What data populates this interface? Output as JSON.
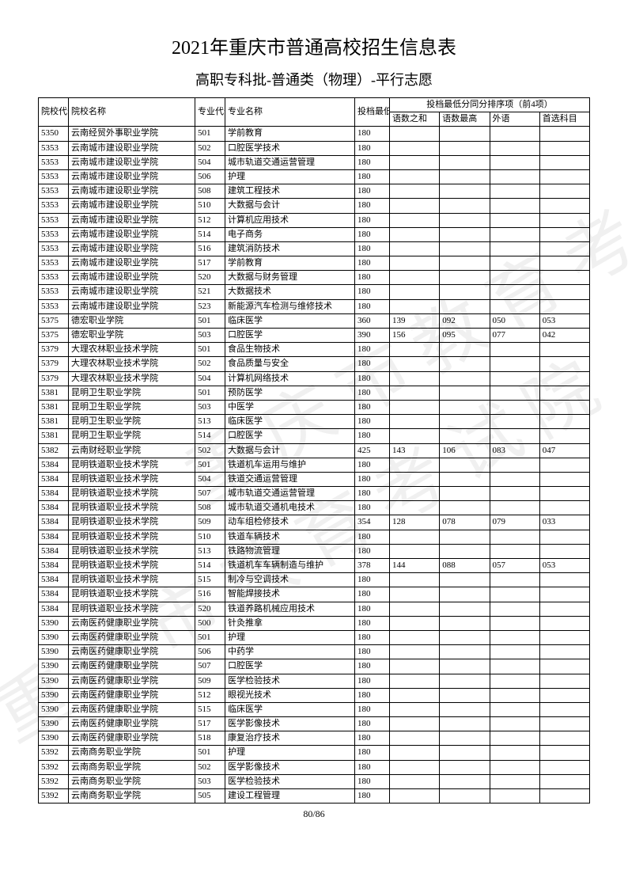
{
  "title": "2021年重庆市普通高校招生信息表",
  "subtitle": "高职专科批-普通类（物理）-平行志愿",
  "page_number": "80/86",
  "watermark": "重庆市教育考试院",
  "header": {
    "col_school_code": "院校代号",
    "col_school_name": "院校名称",
    "col_major_code": "专业代号",
    "col_major_name": "专业名称",
    "col_min_score": "投档最低分",
    "col_tiebreak": "投档最低分同分排序项（前4项）",
    "sub_yushu": "语数之和",
    "sub_yumax": "语数最高",
    "sub_foreign": "外语",
    "sub_pref": "首选科目"
  },
  "rows": [
    {
      "c": "5350",
      "s": "云南经贸外事职业学院",
      "mc": "501",
      "mn": "学前教育",
      "sc": "180",
      "a": "",
      "b": "",
      "d": "",
      "e": ""
    },
    {
      "c": "5353",
      "s": "云南城市建设职业学院",
      "mc": "502",
      "mn": "口腔医学技术",
      "sc": "180",
      "a": "",
      "b": "",
      "d": "",
      "e": ""
    },
    {
      "c": "5353",
      "s": "云南城市建设职业学院",
      "mc": "504",
      "mn": "城市轨道交通运营管理",
      "sc": "180",
      "a": "",
      "b": "",
      "d": "",
      "e": ""
    },
    {
      "c": "5353",
      "s": "云南城市建设职业学院",
      "mc": "506",
      "mn": "护理",
      "sc": "180",
      "a": "",
      "b": "",
      "d": "",
      "e": ""
    },
    {
      "c": "5353",
      "s": "云南城市建设职业学院",
      "mc": "508",
      "mn": "建筑工程技术",
      "sc": "180",
      "a": "",
      "b": "",
      "d": "",
      "e": ""
    },
    {
      "c": "5353",
      "s": "云南城市建设职业学院",
      "mc": "510",
      "mn": "大数据与会计",
      "sc": "180",
      "a": "",
      "b": "",
      "d": "",
      "e": ""
    },
    {
      "c": "5353",
      "s": "云南城市建设职业学院",
      "mc": "512",
      "mn": "计算机应用技术",
      "sc": "180",
      "a": "",
      "b": "",
      "d": "",
      "e": ""
    },
    {
      "c": "5353",
      "s": "云南城市建设职业学院",
      "mc": "514",
      "mn": "电子商务",
      "sc": "180",
      "a": "",
      "b": "",
      "d": "",
      "e": ""
    },
    {
      "c": "5353",
      "s": "云南城市建设职业学院",
      "mc": "516",
      "mn": "建筑消防技术",
      "sc": "180",
      "a": "",
      "b": "",
      "d": "",
      "e": ""
    },
    {
      "c": "5353",
      "s": "云南城市建设职业学院",
      "mc": "517",
      "mn": "学前教育",
      "sc": "180",
      "a": "",
      "b": "",
      "d": "",
      "e": ""
    },
    {
      "c": "5353",
      "s": "云南城市建设职业学院",
      "mc": "520",
      "mn": "大数据与财务管理",
      "sc": "180",
      "a": "",
      "b": "",
      "d": "",
      "e": ""
    },
    {
      "c": "5353",
      "s": "云南城市建设职业学院",
      "mc": "521",
      "mn": "大数据技术",
      "sc": "180",
      "a": "",
      "b": "",
      "d": "",
      "e": ""
    },
    {
      "c": "5353",
      "s": "云南城市建设职业学院",
      "mc": "523",
      "mn": "新能源汽车检测与维修技术",
      "sc": "180",
      "a": "",
      "b": "",
      "d": "",
      "e": ""
    },
    {
      "c": "5375",
      "s": "德宏职业学院",
      "mc": "501",
      "mn": "临床医学",
      "sc": "360",
      "a": "139",
      "b": "092",
      "d": "050",
      "e": "053"
    },
    {
      "c": "5375",
      "s": "德宏职业学院",
      "mc": "503",
      "mn": "口腔医学",
      "sc": "390",
      "a": "156",
      "b": "095",
      "d": "077",
      "e": "042"
    },
    {
      "c": "5379",
      "s": "大理农林职业技术学院",
      "mc": "501",
      "mn": "食品生物技术",
      "sc": "180",
      "a": "",
      "b": "",
      "d": "",
      "e": ""
    },
    {
      "c": "5379",
      "s": "大理农林职业技术学院",
      "mc": "502",
      "mn": "食品质量与安全",
      "sc": "180",
      "a": "",
      "b": "",
      "d": "",
      "e": ""
    },
    {
      "c": "5379",
      "s": "大理农林职业技术学院",
      "mc": "504",
      "mn": "计算机网络技术",
      "sc": "180",
      "a": "",
      "b": "",
      "d": "",
      "e": ""
    },
    {
      "c": "5381",
      "s": "昆明卫生职业学院",
      "mc": "501",
      "mn": "预防医学",
      "sc": "180",
      "a": "",
      "b": "",
      "d": "",
      "e": ""
    },
    {
      "c": "5381",
      "s": "昆明卫生职业学院",
      "mc": "503",
      "mn": "中医学",
      "sc": "180",
      "a": "",
      "b": "",
      "d": "",
      "e": ""
    },
    {
      "c": "5381",
      "s": "昆明卫生职业学院",
      "mc": "513",
      "mn": "临床医学",
      "sc": "180",
      "a": "",
      "b": "",
      "d": "",
      "e": ""
    },
    {
      "c": "5381",
      "s": "昆明卫生职业学院",
      "mc": "514",
      "mn": "口腔医学",
      "sc": "180",
      "a": "",
      "b": "",
      "d": "",
      "e": ""
    },
    {
      "c": "5382",
      "s": "云南财经职业学院",
      "mc": "502",
      "mn": "大数据与会计",
      "sc": "425",
      "a": "143",
      "b": "106",
      "d": "083",
      "e": "047"
    },
    {
      "c": "5384",
      "s": "昆明铁道职业技术学院",
      "mc": "501",
      "mn": "铁道机车运用与维护",
      "sc": "180",
      "a": "",
      "b": "",
      "d": "",
      "e": ""
    },
    {
      "c": "5384",
      "s": "昆明铁道职业技术学院",
      "mc": "504",
      "mn": "铁道交通运营管理",
      "sc": "180",
      "a": "",
      "b": "",
      "d": "",
      "e": ""
    },
    {
      "c": "5384",
      "s": "昆明铁道职业技术学院",
      "mc": "507",
      "mn": "城市轨道交通运营管理",
      "sc": "180",
      "a": "",
      "b": "",
      "d": "",
      "e": ""
    },
    {
      "c": "5384",
      "s": "昆明铁道职业技术学院",
      "mc": "508",
      "mn": "城市轨道交通机电技术",
      "sc": "180",
      "a": "",
      "b": "",
      "d": "",
      "e": ""
    },
    {
      "c": "5384",
      "s": "昆明铁道职业技术学院",
      "mc": "509",
      "mn": "动车组检修技术",
      "sc": "354",
      "a": "128",
      "b": "078",
      "d": "079",
      "e": "033"
    },
    {
      "c": "5384",
      "s": "昆明铁道职业技术学院",
      "mc": "510",
      "mn": "铁道车辆技术",
      "sc": "180",
      "a": "",
      "b": "",
      "d": "",
      "e": ""
    },
    {
      "c": "5384",
      "s": "昆明铁道职业技术学院",
      "mc": "513",
      "mn": "铁路物流管理",
      "sc": "180",
      "a": "",
      "b": "",
      "d": "",
      "e": ""
    },
    {
      "c": "5384",
      "s": "昆明铁道职业技术学院",
      "mc": "514",
      "mn": "铁道机车车辆制造与维护",
      "sc": "378",
      "a": "144",
      "b": "088",
      "d": "057",
      "e": "053"
    },
    {
      "c": "5384",
      "s": "昆明铁道职业技术学院",
      "mc": "515",
      "mn": "制冷与空调技术",
      "sc": "180",
      "a": "",
      "b": "",
      "d": "",
      "e": ""
    },
    {
      "c": "5384",
      "s": "昆明铁道职业技术学院",
      "mc": "516",
      "mn": "智能焊接技术",
      "sc": "180",
      "a": "",
      "b": "",
      "d": "",
      "e": ""
    },
    {
      "c": "5384",
      "s": "昆明铁道职业技术学院",
      "mc": "520",
      "mn": "铁道养路机械应用技术",
      "sc": "180",
      "a": "",
      "b": "",
      "d": "",
      "e": ""
    },
    {
      "c": "5390",
      "s": "云南医药健康职业学院",
      "mc": "500",
      "mn": "针灸推拿",
      "sc": "180",
      "a": "",
      "b": "",
      "d": "",
      "e": ""
    },
    {
      "c": "5390",
      "s": "云南医药健康职业学院",
      "mc": "501",
      "mn": "护理",
      "sc": "180",
      "a": "",
      "b": "",
      "d": "",
      "e": ""
    },
    {
      "c": "5390",
      "s": "云南医药健康职业学院",
      "mc": "506",
      "mn": "中药学",
      "sc": "180",
      "a": "",
      "b": "",
      "d": "",
      "e": ""
    },
    {
      "c": "5390",
      "s": "云南医药健康职业学院",
      "mc": "507",
      "mn": "口腔医学",
      "sc": "180",
      "a": "",
      "b": "",
      "d": "",
      "e": ""
    },
    {
      "c": "5390",
      "s": "云南医药健康职业学院",
      "mc": "509",
      "mn": "医学检验技术",
      "sc": "180",
      "a": "",
      "b": "",
      "d": "",
      "e": ""
    },
    {
      "c": "5390",
      "s": "云南医药健康职业学院",
      "mc": "512",
      "mn": "眼视光技术",
      "sc": "180",
      "a": "",
      "b": "",
      "d": "",
      "e": ""
    },
    {
      "c": "5390",
      "s": "云南医药健康职业学院",
      "mc": "515",
      "mn": "临床医学",
      "sc": "180",
      "a": "",
      "b": "",
      "d": "",
      "e": ""
    },
    {
      "c": "5390",
      "s": "云南医药健康职业学院",
      "mc": "517",
      "mn": "医学影像技术",
      "sc": "180",
      "a": "",
      "b": "",
      "d": "",
      "e": ""
    },
    {
      "c": "5390",
      "s": "云南医药健康职业学院",
      "mc": "518",
      "mn": "康复治疗技术",
      "sc": "180",
      "a": "",
      "b": "",
      "d": "",
      "e": ""
    },
    {
      "c": "5392",
      "s": "云南商务职业学院",
      "mc": "501",
      "mn": "护理",
      "sc": "180",
      "a": "",
      "b": "",
      "d": "",
      "e": ""
    },
    {
      "c": "5392",
      "s": "云南商务职业学院",
      "mc": "502",
      "mn": "医学影像技术",
      "sc": "180",
      "a": "",
      "b": "",
      "d": "",
      "e": ""
    },
    {
      "c": "5392",
      "s": "云南商务职业学院",
      "mc": "503",
      "mn": "医学检验技术",
      "sc": "180",
      "a": "",
      "b": "",
      "d": "",
      "e": ""
    },
    {
      "c": "5392",
      "s": "云南商务职业学院",
      "mc": "505",
      "mn": "建设工程管理",
      "sc": "180",
      "a": "",
      "b": "",
      "d": "",
      "e": ""
    }
  ]
}
